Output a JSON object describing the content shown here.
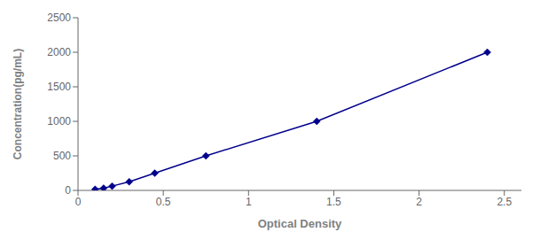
{
  "chart_data": {
    "type": "line",
    "x": [
      0.1,
      0.15,
      0.2,
      0.3,
      0.45,
      0.75,
      1.4,
      2.4
    ],
    "values": [
      15.6,
      31.2,
      62.5,
      125,
      250,
      500,
      1000,
      2000
    ],
    "color": "#00008B",
    "marker": "diamond",
    "line_style": "solid",
    "xlabel": "Optical Density",
    "ylabel": "Concentration(pg/mL)",
    "xlim": [
      0.0,
      2.6
    ],
    "ylim": [
      0,
      2500
    ],
    "xticks": [
      0,
      0.5,
      1,
      1.5,
      2,
      2.5
    ],
    "yticks": [
      0,
      500,
      1000,
      1500,
      2000,
      2500
    ],
    "grid": false
  }
}
